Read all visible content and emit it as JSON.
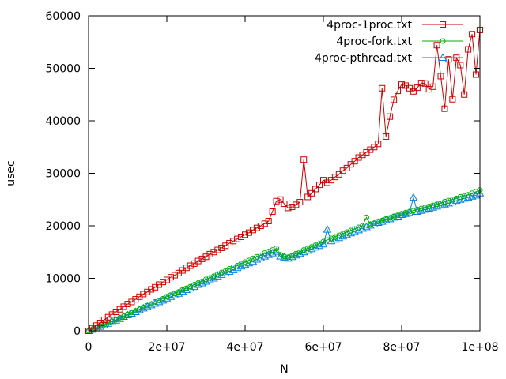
{
  "chart_data": {
    "type": "line",
    "xlabel": "N",
    "ylabel": "usec",
    "xlim": [
      0,
      100000000
    ],
    "ylim": [
      0,
      60000
    ],
    "xticks": [
      0,
      20000000,
      40000000,
      60000000,
      80000000,
      100000000
    ],
    "xtick_labels": [
      "0",
      "2e+07",
      "4e+07",
      "6e+07",
      "8e+07",
      "1e+08"
    ],
    "yticks": [
      0,
      10000,
      20000,
      30000,
      40000,
      50000,
      60000
    ],
    "ytick_labels": [
      "0",
      "10000",
      "20000",
      "30000",
      "40000",
      "50000",
      "60000"
    ],
    "grid": false,
    "legend_position": "top-right",
    "series": [
      {
        "name": "4proc-1proc.txt",
        "color": "#cc0000",
        "marker": "square",
        "x_start": 0,
        "x_step": 1000000,
        "values": [
          0,
          500,
          1000,
          1500,
          2100,
          2600,
          3100,
          3600,
          4100,
          4600,
          5100,
          5500,
          6000,
          6500,
          7000,
          7400,
          7900,
          8300,
          8800,
          9300,
          9700,
          10200,
          10600,
          11000,
          11500,
          12000,
          12400,
          12800,
          13300,
          13700,
          14100,
          14600,
          15000,
          15400,
          15800,
          16200,
          16700,
          17100,
          17500,
          17900,
          18300,
          18700,
          19200,
          19600,
          20000,
          20400,
          20900,
          22700,
          24700,
          25000,
          24200,
          23400,
          23600,
          24000,
          24500,
          32600,
          25500,
          26200,
          27000,
          27800,
          28700,
          28200,
          28700,
          29300,
          29800,
          30500,
          31000,
          31700,
          32300,
          33000,
          33500,
          34000,
          34500,
          35000,
          35600,
          46200,
          37000,
          40800,
          44000,
          45700,
          46900,
          46700,
          46200,
          45600,
          46300,
          47200,
          47100,
          46000,
          46500,
          54400,
          48500,
          42300,
          51700,
          44100,
          52000,
          50600,
          45000,
          53600,
          56500,
          48800,
          57300
        ]
      },
      {
        "name": "4proc-fork.txt",
        "color": "#00b000",
        "marker": "circle",
        "x_start": 0,
        "x_step": 1000000,
        "values": [
          0,
          300,
          600,
          900,
          1200,
          1500,
          1800,
          2100,
          2500,
          2800,
          3100,
          3500,
          3800,
          4100,
          4500,
          4800,
          5100,
          5500,
          5800,
          6100,
          6500,
          6800,
          7100,
          7400,
          7800,
          8100,
          8400,
          8800,
          9100,
          9400,
          9800,
          10100,
          10400,
          10800,
          11100,
          11400,
          11800,
          12100,
          12400,
          12800,
          13100,
          13400,
          13800,
          14100,
          14400,
          14800,
          15100,
          15400,
          15700,
          14500,
          14200,
          14000,
          14300,
          14700,
          15000,
          15400,
          15700,
          16000,
          16300,
          16600,
          17000,
          17300,
          17600,
          17900,
          18200,
          18500,
          18800,
          19100,
          19400,
          19700,
          20000,
          21600,
          20300,
          20500,
          20800,
          21000,
          21300,
          21500,
          21800,
          22000,
          22300,
          22500,
          22700,
          22900,
          23100,
          23300,
          23500,
          23700,
          23900,
          24100,
          24300,
          24600,
          24800,
          25000,
          25200,
          25500,
          25700,
          25900,
          26200,
          26500,
          26800
        ]
      },
      {
        "name": "4proc-pthread.txt",
        "color": "#0080e0",
        "marker": "triangle",
        "x_start": 0,
        "x_step": 1000000,
        "values": [
          0,
          250,
          500,
          800,
          1100,
          1400,
          1700,
          2000,
          2300,
          2700,
          3000,
          3300,
          3600,
          4000,
          4300,
          4600,
          4900,
          5200,
          5500,
          5800,
          6200,
          6500,
          6800,
          7100,
          7500,
          7800,
          8100,
          8400,
          8800,
          9100,
          9400,
          9700,
          10000,
          10400,
          10700,
          11000,
          11300,
          11600,
          12000,
          12300,
          12600,
          12900,
          13200,
          13600,
          13900,
          14200,
          14500,
          14800,
          15100,
          14200,
          14000,
          13800,
          14100,
          14400,
          14700,
          15000,
          15300,
          15600,
          15900,
          16200,
          16500,
          19300,
          17100,
          17400,
          17700,
          18000,
          18300,
          18600,
          18900,
          19200,
          19500,
          19800,
          20100,
          20300,
          20600,
          20800,
          21100,
          21300,
          21600,
          21800,
          22100,
          22300,
          22500,
          25400,
          22700,
          22900,
          23100,
          23300,
          23500,
          23700,
          23900,
          24100,
          24300,
          24500,
          24800,
          25000,
          25200,
          25400,
          25600,
          25800,
          26200
        ]
      }
    ]
  }
}
